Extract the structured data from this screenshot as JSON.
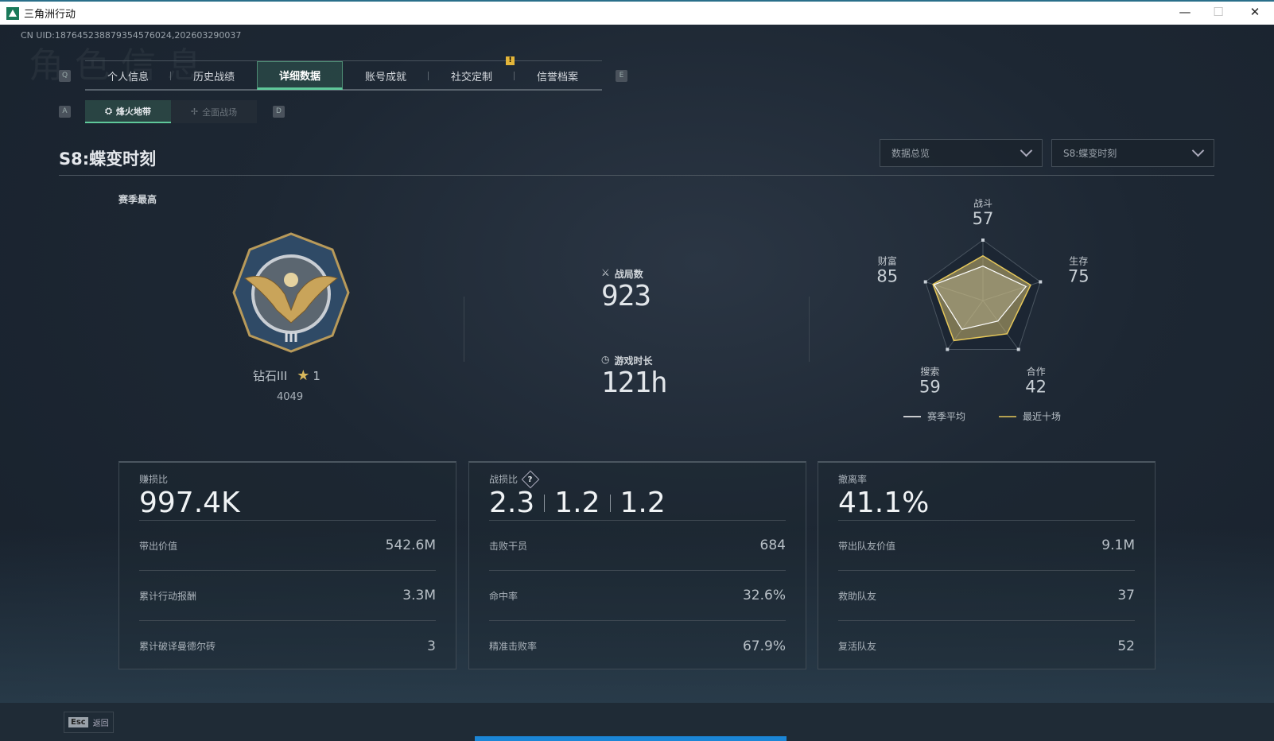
{
  "window": {
    "title": "三角洲行动",
    "minimize": "—",
    "maximize": "☐",
    "close": "✕"
  },
  "uid": "CN UID:187645238879354576024,202603290037",
  "watermark": "角色信息",
  "tabs": {
    "prev_key": "Q",
    "next_key": "E",
    "items": [
      {
        "label": "个人信息"
      },
      {
        "label": "历史战绩"
      },
      {
        "label": "详细数据",
        "active": true
      },
      {
        "label": "账号成就"
      },
      {
        "label": "社交定制",
        "badge": "!"
      },
      {
        "label": "信誉档案"
      }
    ]
  },
  "subtabs": {
    "prev_key": "A",
    "next_key": "D",
    "items": [
      {
        "label": "烽火地带",
        "icon": "flame-zone-icon",
        "active": true
      },
      {
        "label": "全面战场",
        "icon": "battlefield-icon"
      }
    ]
  },
  "season_title": "S8:蝶变时刻",
  "dropdowns": [
    {
      "value": "数据总览"
    },
    {
      "value": "S8:蝶变时刻"
    }
  ],
  "rank": {
    "label": "赛季最高",
    "name": "钻石III",
    "stars": "1",
    "score": "4049"
  },
  "center_stats": {
    "matches_label": "战局数",
    "matches": "923",
    "time_label": "游戏时长",
    "time": "121h"
  },
  "chart_data": {
    "type": "radar",
    "axes": [
      "战斗",
      "生存",
      "合作",
      "搜索",
      "财富"
    ],
    "range": [
      0,
      100
    ],
    "series": [
      {
        "name": "赛季平均",
        "color": "#ffffff",
        "values": [
          57,
          75,
          42,
          59,
          85
        ]
      },
      {
        "name": "最近十场",
        "color": "#e6c85a",
        "values": [
          74,
          83,
          68,
          82,
          87
        ]
      }
    ],
    "labels": [
      "57",
      "75",
      "42",
      "59",
      "85"
    ],
    "legend": "bottom"
  },
  "boxes": [
    {
      "title": "赚损比",
      "big": [
        "997.4K"
      ],
      "rows": [
        {
          "label": "带出价值",
          "value": "542.6M"
        },
        {
          "label": "累计行动报酬",
          "value": "3.3M"
        },
        {
          "label": "累计破译曼德尔砖",
          "value": "3"
        }
      ]
    },
    {
      "title": "战损比",
      "help": "?",
      "big": [
        "2.3",
        "1.2",
        "1.2"
      ],
      "rows": [
        {
          "label": "击败干员",
          "value": "684"
        },
        {
          "label": "命中率",
          "value": "32.6%"
        },
        {
          "label": "精准击败率",
          "value": "67.9%"
        }
      ]
    },
    {
      "title": "撤离率",
      "big": [
        "41.1%"
      ],
      "rows": [
        {
          "label": "带出队友价值",
          "value": "9.1M"
        },
        {
          "label": "救助队友",
          "value": "37"
        },
        {
          "label": "复活队友",
          "value": "52"
        }
      ]
    }
  ],
  "footer": {
    "esc_key": "Esc",
    "back_label": "返回"
  },
  "colors": {
    "accent": "#5fc89a",
    "radar_recent": "#e6c85a",
    "progress": "#1b86d6"
  }
}
